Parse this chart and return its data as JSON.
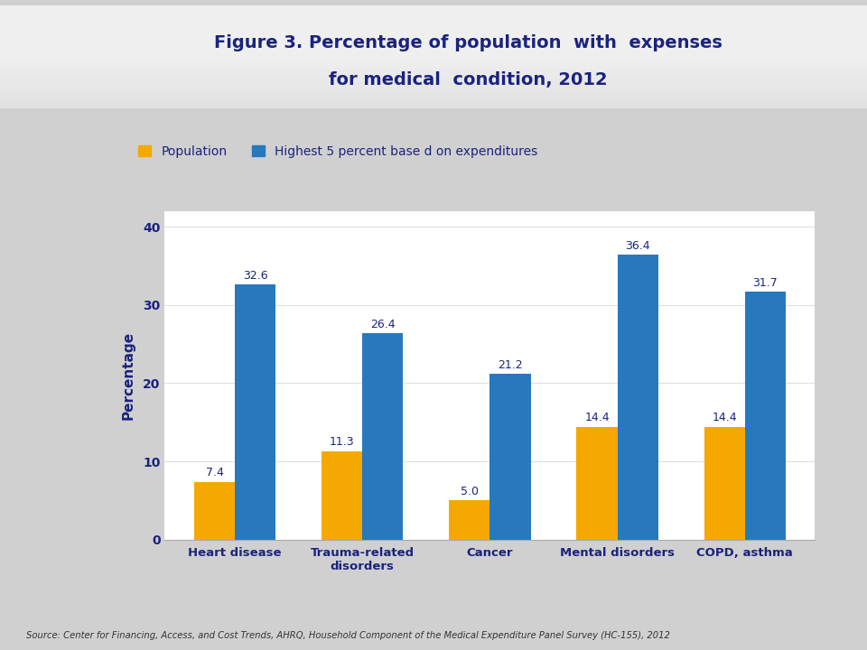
{
  "title_line1": "Figure 3. Percentage of population  with  expenses",
  "title_line2": "for medical  condition, 2012",
  "categories": [
    "Heart disease",
    "Trauma-related\ndisorders",
    "Cancer",
    "Mental disorders",
    "COPD, asthma"
  ],
  "population": [
    7.4,
    11.3,
    5.0,
    14.4,
    14.4
  ],
  "highest5": [
    32.6,
    26.4,
    21.2,
    36.4,
    31.7
  ],
  "pop_color": "#F5A800",
  "high5_color": "#2878BE",
  "ylabel": "Percentage",
  "ylim": [
    0,
    42
  ],
  "yticks": [
    0,
    10,
    20,
    30,
    40
  ],
  "legend_pop": "Population",
  "legend_high5": "Highest 5 percent base d on expenditures",
  "source_text": "Source: Center for Financing, Access, and Cost Trends, AHRQ, Household Component of the Medical Expenditure Panel Survey (HC-155), 2012",
  "title_color": "#1A237E",
  "axis_label_color": "#1A237E",
  "tick_label_color": "#1A237E",
  "bar_label_color": "#1A237E",
  "background_outer": "#D0D0D0",
  "background_inner": "#FFFFFF",
  "bar_width": 0.32,
  "header_bg_top": "#C8C8C8",
  "header_bg_bottom": "#E8E8E8",
  "separator_color": "#999999"
}
